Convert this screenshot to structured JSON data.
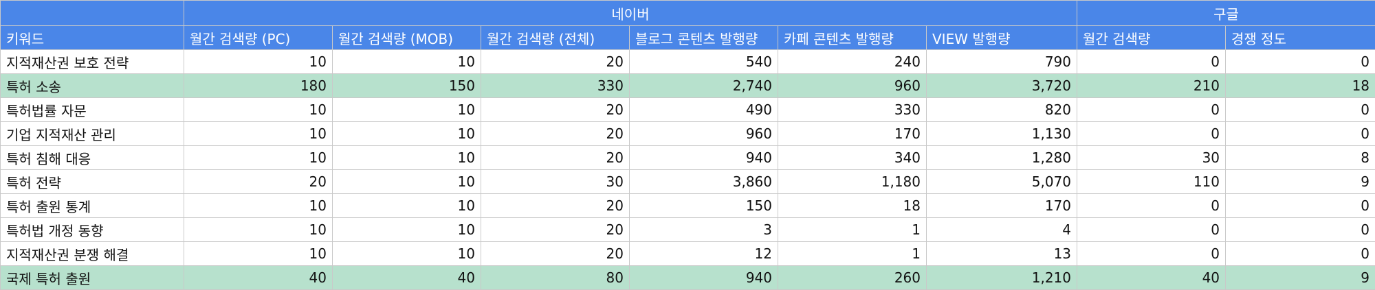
{
  "group_headers": {
    "naver": "네이버",
    "google": "구글"
  },
  "columns": [
    "키워드",
    "월간 검색량 (PC)",
    "월간 검색량 (MOB)",
    "월간 검색량 (전체)",
    "블로그 콘텐츠 발행량",
    "카페 콘텐츠 발행량",
    "VIEW 발행량",
    "월간 검색량",
    "경쟁 정도"
  ],
  "rows": [
    {
      "cells": [
        "지적재산권 보호 전략",
        "10",
        "10",
        "20",
        "540",
        "240",
        "790",
        "0",
        "0"
      ],
      "highlight": false
    },
    {
      "cells": [
        "특허 소송",
        "180",
        "150",
        "330",
        "2,740",
        "960",
        "3,720",
        "210",
        "18"
      ],
      "highlight": true
    },
    {
      "cells": [
        "특허법률 자문",
        "10",
        "10",
        "20",
        "490",
        "330",
        "820",
        "0",
        "0"
      ],
      "highlight": false
    },
    {
      "cells": [
        "기업 지적재산 관리",
        "10",
        "10",
        "20",
        "960",
        "170",
        "1,130",
        "0",
        "0"
      ],
      "highlight": false
    },
    {
      "cells": [
        "특허 침해 대응",
        "10",
        "10",
        "20",
        "940",
        "340",
        "1,280",
        "30",
        "8"
      ],
      "highlight": false
    },
    {
      "cells": [
        "특허 전략",
        "20",
        "10",
        "30",
        "3,860",
        "1,180",
        "5,070",
        "110",
        "9"
      ],
      "highlight": false
    },
    {
      "cells": [
        "특허 출원 통계",
        "10",
        "10",
        "20",
        "150",
        "18",
        "170",
        "0",
        "0"
      ],
      "highlight": false
    },
    {
      "cells": [
        "특허법 개정 동향",
        "10",
        "10",
        "20",
        "3",
        "1",
        "4",
        "0",
        "0"
      ],
      "highlight": false
    },
    {
      "cells": [
        "지적재산권 분쟁 해결",
        "10",
        "10",
        "20",
        "12",
        "1",
        "13",
        "0",
        "0"
      ],
      "highlight": false
    },
    {
      "cells": [
        "국제 특허 출원",
        "40",
        "40",
        "80",
        "940",
        "260",
        "1,210",
        "40",
        "9"
      ],
      "highlight": true
    }
  ],
  "colors": {
    "header_bg": "#4a86e8",
    "header_text": "#ffffff",
    "highlight_row": "#b7e1cd"
  }
}
